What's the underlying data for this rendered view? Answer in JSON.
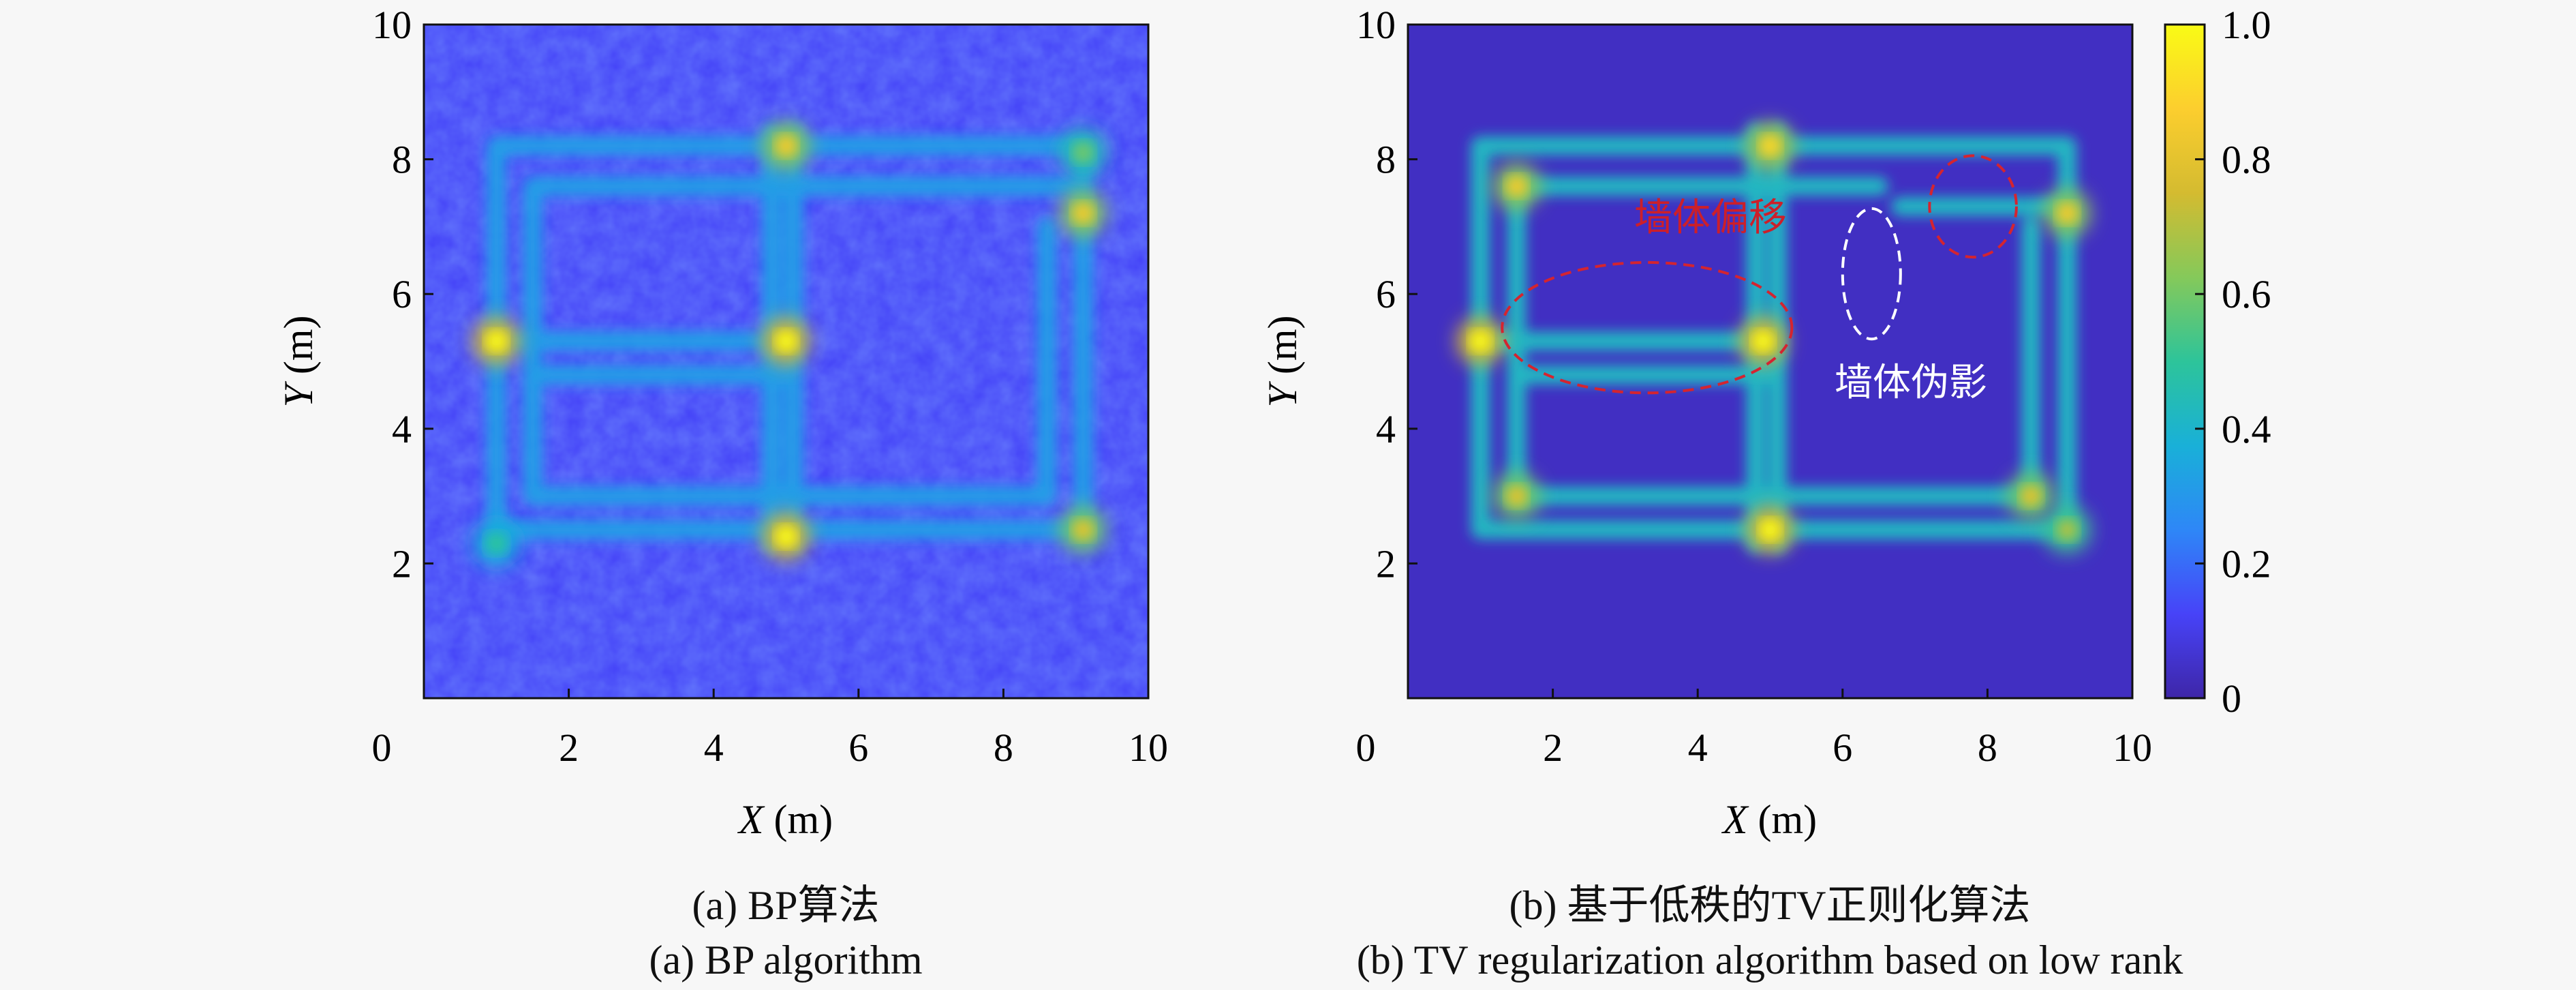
{
  "figure": {
    "panels": [
      {
        "id": "a",
        "caption_cn": "(a) BP算法",
        "caption_en": "(a) BP algorithm"
      },
      {
        "id": "b",
        "caption_cn": "(b) 基于低秩的TV正则化算法",
        "caption_en": "(b) TV regularization algorithm based on low rank",
        "annotations": [
          {
            "text": "墙体偏移",
            "color": "#cc1f2a"
          },
          {
            "text": "墙体伪影",
            "color": "#ffffff"
          }
        ]
      }
    ]
  },
  "chart_data": [
    {
      "type": "heatmap",
      "panel": "a",
      "xlabel_var": "X",
      "xlabel_unit": " (m)",
      "ylabel_var": "Y",
      "ylabel_unit": " (m)",
      "xlim": [
        0,
        10
      ],
      "ylim": [
        0,
        10
      ],
      "xticks": [
        0,
        2,
        4,
        6,
        8,
        10
      ],
      "yticks": [
        2,
        4,
        6,
        8,
        10
      ],
      "xtick_labels": [
        "0",
        "2",
        "4",
        "6",
        "8",
        "10"
      ],
      "ytick_labels": [
        "2",
        "4",
        "6",
        "8",
        "10"
      ],
      "background_level": 0.13,
      "walls_level": 0.32,
      "walls": [
        {
          "from": [
            1.0,
            8.2
          ],
          "to": [
            9.1,
            8.2
          ]
        },
        {
          "from": [
            1.5,
            7.6
          ],
          "to": [
            9.1,
            7.6
          ]
        },
        {
          "from": [
            1.0,
            5.3
          ],
          "to": [
            5.0,
            5.3
          ]
        },
        {
          "from": [
            1.5,
            4.8
          ],
          "to": [
            5.0,
            4.8
          ]
        },
        {
          "from": [
            1.5,
            3.0
          ],
          "to": [
            8.6,
            3.0
          ]
        },
        {
          "from": [
            1.0,
            2.5
          ],
          "to": [
            9.1,
            2.5
          ]
        },
        {
          "from": [
            1.0,
            2.5
          ],
          "to": [
            1.0,
            8.2
          ]
        },
        {
          "from": [
            1.5,
            3.0
          ],
          "to": [
            1.5,
            7.6
          ]
        },
        {
          "from": [
            4.8,
            2.3
          ],
          "to": [
            4.8,
            8.4
          ]
        },
        {
          "from": [
            5.1,
            2.3
          ],
          "to": [
            5.1,
            8.4
          ]
        },
        {
          "from": [
            8.6,
            3.0
          ],
          "to": [
            8.6,
            7.0
          ]
        },
        {
          "from": [
            9.1,
            2.5
          ],
          "to": [
            9.1,
            8.2
          ]
        }
      ],
      "hotspots": [
        {
          "x": 1.0,
          "y": 5.3,
          "value": 1.0
        },
        {
          "x": 5.0,
          "y": 5.3,
          "value": 1.0
        },
        {
          "x": 5.0,
          "y": 2.4,
          "value": 1.0
        },
        {
          "x": 5.0,
          "y": 8.2,
          "value": 0.85
        },
        {
          "x": 9.1,
          "y": 7.2,
          "value": 0.85
        },
        {
          "x": 9.1,
          "y": 2.5,
          "value": 0.8
        },
        {
          "x": 1.0,
          "y": 2.3,
          "value": 0.5
        },
        {
          "x": 9.1,
          "y": 8.1,
          "value": 0.6
        }
      ]
    },
    {
      "type": "heatmap",
      "panel": "b",
      "xlabel_var": "X",
      "xlabel_unit": " (m)",
      "ylabel_var": "Y",
      "ylabel_unit": " (m)",
      "xlim": [
        0,
        10
      ],
      "ylim": [
        0,
        10
      ],
      "xticks": [
        0,
        2,
        4,
        6,
        8,
        10
      ],
      "yticks": [
        2,
        4,
        6,
        8,
        10
      ],
      "xtick_labels": [
        "0",
        "2",
        "4",
        "6",
        "8",
        "10"
      ],
      "ytick_labels": [
        "2",
        "4",
        "6",
        "8",
        "10"
      ],
      "background_level": 0.04,
      "walls_level": 0.42,
      "walls": [
        {
          "from": [
            1.0,
            8.2
          ],
          "to": [
            9.1,
            8.2
          ]
        },
        {
          "from": [
            1.5,
            7.6
          ],
          "to": [
            6.5,
            7.6
          ]
        },
        {
          "from": [
            6.8,
            7.3
          ],
          "to": [
            9.1,
            7.3
          ]
        },
        {
          "from": [
            1.0,
            5.3
          ],
          "to": [
            5.0,
            5.3
          ]
        },
        {
          "from": [
            1.5,
            4.8
          ],
          "to": [
            5.0,
            4.8
          ]
        },
        {
          "from": [
            1.5,
            3.0
          ],
          "to": [
            8.6,
            3.0
          ]
        },
        {
          "from": [
            1.0,
            2.5
          ],
          "to": [
            9.1,
            2.5
          ]
        },
        {
          "from": [
            1.0,
            2.5
          ],
          "to": [
            1.0,
            8.2
          ]
        },
        {
          "from": [
            1.5,
            3.0
          ],
          "to": [
            1.5,
            7.6
          ]
        },
        {
          "from": [
            4.8,
            2.3
          ],
          "to": [
            4.8,
            8.4
          ]
        },
        {
          "from": [
            5.1,
            2.3
          ],
          "to": [
            5.1,
            8.4
          ]
        },
        {
          "from": [
            8.6,
            3.0
          ],
          "to": [
            8.6,
            7.0
          ]
        },
        {
          "from": [
            9.1,
            2.5
          ],
          "to": [
            9.1,
            8.2
          ]
        }
      ],
      "hotspots": [
        {
          "x": 1.0,
          "y": 5.3,
          "value": 1.0
        },
        {
          "x": 4.9,
          "y": 5.3,
          "value": 1.0
        },
        {
          "x": 5.0,
          "y": 2.5,
          "value": 1.0
        },
        {
          "x": 5.0,
          "y": 8.2,
          "value": 0.9
        },
        {
          "x": 1.5,
          "y": 7.6,
          "value": 0.85
        },
        {
          "x": 1.5,
          "y": 3.0,
          "value": 0.8
        },
        {
          "x": 8.6,
          "y": 3.0,
          "value": 0.8
        },
        {
          "x": 9.1,
          "y": 7.2,
          "value": 0.85
        },
        {
          "x": 9.1,
          "y": 2.5,
          "value": 0.7
        }
      ],
      "ellipses": [
        {
          "cx": 3.3,
          "cy": 5.5,
          "rx": 2.0,
          "ry": 0.9,
          "style": "red-dashed"
        },
        {
          "cx": 7.8,
          "cy": 7.3,
          "rx": 0.6,
          "ry": 0.7,
          "style": "red-dashed"
        },
        {
          "cx": 6.4,
          "cy": 6.3,
          "rx": 0.4,
          "ry": 0.9,
          "style": "white-dashed"
        }
      ],
      "colorbar": {
        "min": 0,
        "max": 1,
        "ticks": [
          0,
          0.2,
          0.4,
          0.6,
          0.8,
          1.0
        ],
        "tick_labels": [
          "0",
          "0.2",
          "0.4",
          "0.6",
          "0.8",
          "1.0"
        ],
        "colormap": [
          "#3e26a8",
          "#4743f8",
          "#2e87f7",
          "#19b0d8",
          "#2dc49a",
          "#85c95a",
          "#d4bb30",
          "#fcce2e",
          "#f9fb15"
        ]
      }
    }
  ]
}
